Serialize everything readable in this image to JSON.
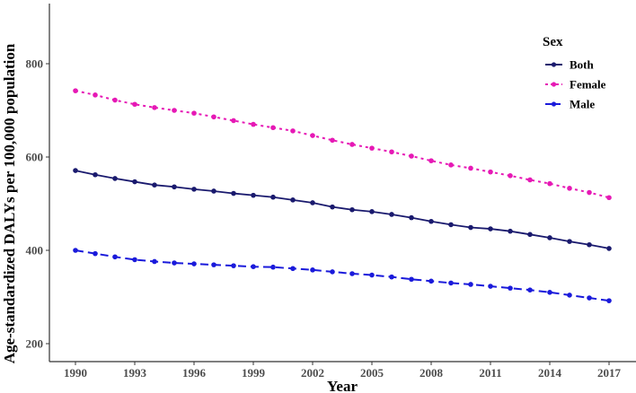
{
  "chart_data": {
    "type": "line",
    "title": "",
    "xlabel": "Year",
    "ylabel": "Age-standardized DALYs per 100,000 population",
    "x": [
      1990,
      1991,
      1992,
      1993,
      1994,
      1995,
      1996,
      1997,
      1998,
      1999,
      2000,
      2001,
      2002,
      2003,
      2004,
      2005,
      2006,
      2007,
      2008,
      2009,
      2010,
      2011,
      2012,
      2013,
      2014,
      2015,
      2016,
      2017
    ],
    "xticks": [
      1990,
      1993,
      1996,
      1999,
      2002,
      2005,
      2008,
      2011,
      2014,
      2017
    ],
    "yticks": [
      200,
      400,
      600,
      800
    ],
    "ylim": [
      180,
      930
    ],
    "xlim": [
      1988.7,
      2018.3
    ],
    "grid": false,
    "legend": {
      "title": "Sex",
      "position": "top-right"
    },
    "series": [
      {
        "name": "Both",
        "color": "#1a1a6e",
        "dash": "solid",
        "values": [
          571,
          562,
          554,
          547,
          540,
          536,
          531,
          527,
          522,
          518,
          514,
          508,
          502,
          493,
          487,
          483,
          477,
          470,
          462,
          455,
          449,
          446,
          441,
          434,
          427,
          419,
          412,
          404
        ]
      },
      {
        "name": "Female",
        "color": "#e619b5",
        "dash": "dotted",
        "values": [
          742,
          733,
          722,
          713,
          706,
          700,
          694,
          686,
          678,
          670,
          663,
          656,
          646,
          636,
          627,
          619,
          611,
          602,
          592,
          583,
          576,
          568,
          560,
          551,
          543,
          533,
          524,
          513
        ]
      },
      {
        "name": "Male",
        "color": "#1a1adb",
        "dash": "dashed",
        "values": [
          400,
          393,
          386,
          380,
          376,
          373,
          371,
          369,
          367,
          365,
          364,
          361,
          358,
          354,
          350,
          347,
          343,
          338,
          334,
          330,
          327,
          323,
          319,
          315,
          310,
          304,
          298,
          292
        ]
      }
    ]
  },
  "labels": {
    "xlabel": "Year",
    "ylabel": "Age-standardized DALYs per 100,000 population",
    "legend_title": "Sex",
    "legend_items": [
      "Both",
      "Female",
      "Male"
    ]
  }
}
